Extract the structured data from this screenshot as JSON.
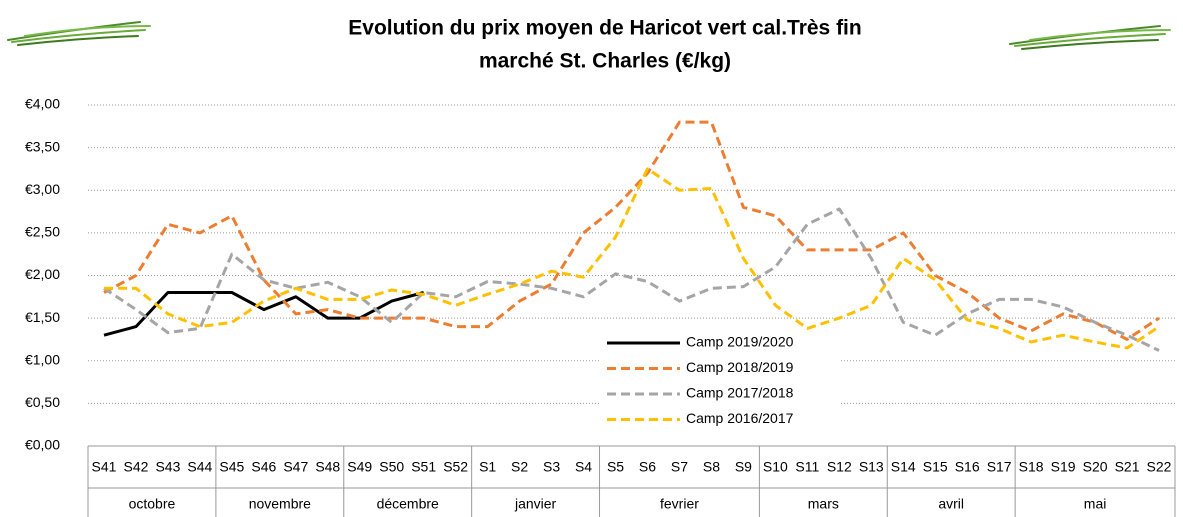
{
  "chart_data": {
    "type": "line",
    "title": [
      "Evolution du prix moyen de Haricot vert cal.Très fin",
      "marché St. Charles (€/kg)"
    ],
    "categories": [
      "S41",
      "S42",
      "S43",
      "S44",
      "S45",
      "S46",
      "S47",
      "S48",
      "S49",
      "S50",
      "S51",
      "S52",
      "S1",
      "S2",
      "S3",
      "S4",
      "S5",
      "S6",
      "S7",
      "S8",
      "S9",
      "S10",
      "S11",
      "S12",
      "S13",
      "S14",
      "S15",
      "S16",
      "S17",
      "S18",
      "S19",
      "S20",
      "S21",
      "S22"
    ],
    "groups": [
      {
        "name": "octobre",
        "span": 4
      },
      {
        "name": "novembre",
        "span": 4
      },
      {
        "name": "décembre",
        "span": 4
      },
      {
        "name": "janvier",
        "span": 4
      },
      {
        "name": "fevrier",
        "span": 5
      },
      {
        "name": "mars",
        "span": 4
      },
      {
        "name": "avril",
        "span": 4
      },
      {
        "name": "mai",
        "span": 5
      }
    ],
    "series": [
      {
        "name": "Camp 2019/2020",
        "color": "#000000",
        "legend_color": "#000000",
        "dashed": false,
        "values": [
          1.3,
          1.4,
          1.8,
          1.8,
          1.8,
          1.6,
          1.75,
          1.5,
          1.5,
          1.7,
          1.8,
          null,
          null,
          null,
          null,
          null,
          null,
          null,
          null,
          null,
          null,
          null,
          null,
          null,
          null,
          null,
          null,
          null,
          null,
          null,
          null,
          null,
          null,
          null
        ]
      },
      {
        "name": "Camp 2018/2019",
        "color": "#ED7D31",
        "legend_color": "#C00000",
        "dashed": true,
        "values": [
          1.8,
          2.0,
          2.6,
          2.5,
          2.7,
          1.95,
          1.55,
          1.6,
          1.5,
          1.5,
          1.5,
          1.4,
          1.4,
          1.7,
          1.9,
          2.5,
          2.8,
          3.2,
          3.8,
          3.8,
          2.8,
          2.7,
          2.3,
          2.3,
          2.3,
          2.5,
          2.0,
          1.8,
          1.5,
          1.35,
          1.55,
          1.45,
          1.25,
          1.5
        ]
      },
      {
        "name": "Camp 2017/2018",
        "color": "#A5A5A5",
        "legend_color": "#00B050",
        "dashed": true,
        "values": [
          1.85,
          1.6,
          1.33,
          1.38,
          2.25,
          1.95,
          1.85,
          1.92,
          1.75,
          1.45,
          1.8,
          1.75,
          1.93,
          1.9,
          1.85,
          1.75,
          2.02,
          1.93,
          1.7,
          1.85,
          1.87,
          2.1,
          2.6,
          2.78,
          2.2,
          1.45,
          1.3,
          1.55,
          1.72,
          1.72,
          1.63,
          1.45,
          1.3,
          1.12
        ]
      },
      {
        "name": "Camp 2016/2017",
        "color": "#FFC000",
        "legend_color": "#000000",
        "dashed": true,
        "values": [
          1.85,
          1.85,
          1.55,
          1.4,
          1.45,
          1.7,
          1.85,
          1.72,
          1.72,
          1.83,
          1.78,
          1.65,
          1.78,
          1.9,
          2.05,
          1.98,
          2.45,
          3.25,
          3.0,
          3.02,
          2.2,
          1.65,
          1.38,
          1.5,
          1.65,
          2.2,
          1.95,
          1.48,
          1.38,
          1.22,
          1.3,
          1.22,
          1.15,
          1.4
        ]
      }
    ],
    "ylim": [
      0,
      4
    ],
    "yticks": [
      {
        "value": 0,
        "label": "€0,00"
      },
      {
        "value": 0.5,
        "label": "€0,50"
      },
      {
        "value": 1,
        "label": "€1,00"
      },
      {
        "value": 1.5,
        "label": "€1,50"
      },
      {
        "value": 2,
        "label": "€2,00"
      },
      {
        "value": 2.5,
        "label": "€2,50"
      },
      {
        "value": 3,
        "label": "€3,00"
      },
      {
        "value": 3.5,
        "label": "€3,50"
      },
      {
        "value": 4,
        "label": "€4,00"
      }
    ],
    "grid": true
  }
}
